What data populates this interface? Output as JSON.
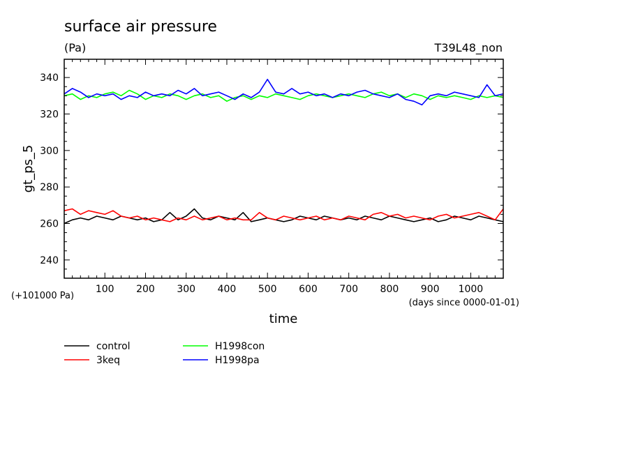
{
  "chart_data": {
    "type": "line",
    "title": "surface air pressure",
    "unit": "(Pa)",
    "run_label": "T39L48_non",
    "ylabel": "gt_ps_5",
    "xlabel": "time",
    "x_note": "(days since 0000-01-01)",
    "y_offset_note": "(+101000 Pa)",
    "xlim": [
      0,
      1080
    ],
    "ylim": [
      230,
      350
    ],
    "x_ticks": [
      100,
      200,
      300,
      400,
      500,
      600,
      700,
      800,
      900,
      1000
    ],
    "y_ticks": [
      240,
      260,
      280,
      300,
      320,
      340
    ],
    "legend_placement": "bottom-left",
    "x": [
      0,
      20,
      40,
      60,
      80,
      100,
      120,
      140,
      160,
      180,
      200,
      220,
      240,
      260,
      280,
      300,
      320,
      340,
      360,
      380,
      400,
      420,
      440,
      460,
      480,
      500,
      520,
      540,
      560,
      580,
      600,
      620,
      640,
      660,
      680,
      700,
      720,
      740,
      760,
      780,
      800,
      820,
      840,
      860,
      880,
      900,
      920,
      940,
      960,
      980,
      1000,
      1020,
      1040,
      1060,
      1080
    ],
    "series": [
      {
        "name": "control",
        "color": "#000000",
        "values": [
          260,
          262,
          263,
          262,
          264,
          263,
          262,
          264,
          263,
          262,
          263,
          261,
          262,
          266,
          262,
          264,
          268,
          263,
          262,
          264,
          263,
          262,
          266,
          261,
          262,
          263,
          262,
          261,
          262,
          264,
          263,
          262,
          264,
          263,
          262,
          263,
          262,
          264,
          263,
          262,
          264,
          263,
          262,
          261,
          262,
          263,
          261,
          262,
          264,
          263,
          262,
          264,
          263,
          262,
          261
        ]
      },
      {
        "name": "3keq",
        "color": "#ff0000",
        "values": [
          267,
          268,
          265,
          267,
          266,
          265,
          267,
          264,
          263,
          264,
          262,
          263,
          262,
          261,
          263,
          262,
          264,
          262,
          263,
          264,
          262,
          263,
          262,
          262,
          266,
          263,
          262,
          264,
          263,
          262,
          263,
          264,
          262,
          263,
          262,
          264,
          263,
          262,
          265,
          266,
          264,
          265,
          263,
          264,
          263,
          262,
          264,
          265,
          263,
          264,
          265,
          266,
          264,
          262,
          268
        ]
      },
      {
        "name": "H1998con",
        "color": "#00ff00",
        "values": [
          330,
          331,
          328,
          330,
          329,
          331,
          332,
          330,
          333,
          331,
          328,
          330,
          329,
          331,
          330,
          328,
          330,
          331,
          329,
          330,
          327,
          329,
          330,
          328,
          330,
          329,
          331,
          330,
          329,
          328,
          330,
          331,
          330,
          329,
          330,
          331,
          330,
          329,
          331,
          332,
          330,
          331,
          329,
          331,
          330,
          328,
          330,
          329,
          330,
          329,
          328,
          330,
          329,
          330,
          329
        ]
      },
      {
        "name": "H1998pa",
        "color": "#0000ff",
        "values": [
          331,
          334,
          332,
          329,
          331,
          330,
          331,
          328,
          330,
          329,
          332,
          330,
          331,
          330,
          333,
          331,
          334,
          330,
          331,
          332,
          330,
          328,
          331,
          329,
          332,
          339,
          332,
          331,
          334,
          331,
          332,
          330,
          331,
          329,
          331,
          330,
          332,
          333,
          331,
          330,
          329,
          331,
          328,
          327,
          325,
          330,
          331,
          330,
          332,
          331,
          330,
          329,
          336,
          330,
          331
        ]
      }
    ]
  }
}
